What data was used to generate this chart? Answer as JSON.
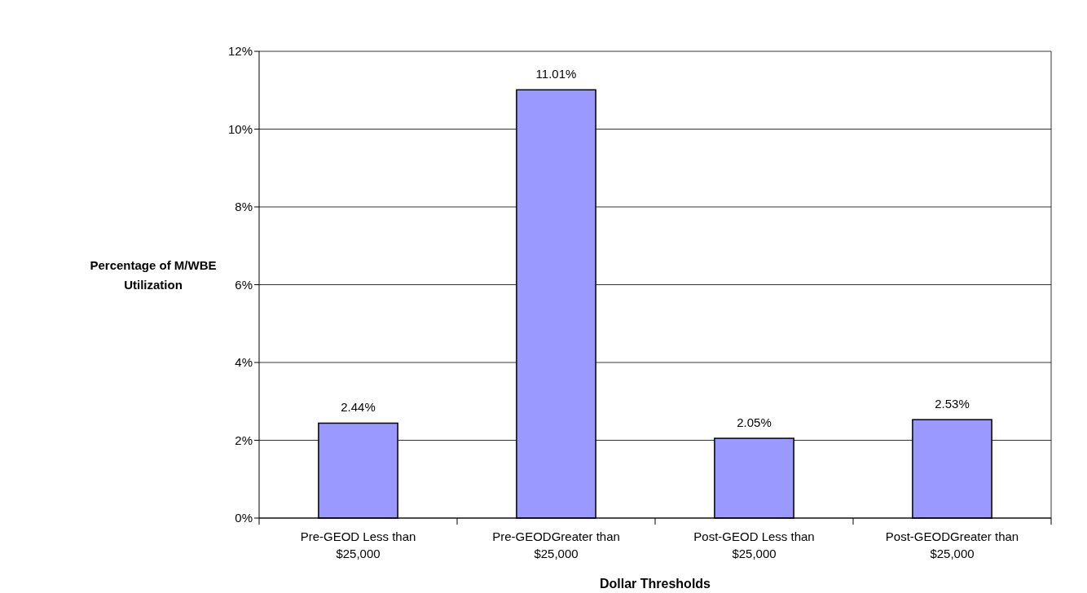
{
  "chart_data": {
    "type": "bar",
    "xlabel": "Dollar Thresholds",
    "ylabel": "Percentage of M/WBE Utilization",
    "categories": [
      "Pre-GEOD Less than $25,000",
      "Pre-GEODGreater than $25,000",
      "Post-GEOD Less than $25,000",
      "Post-GEODGreater than $25,000"
    ],
    "values": [
      2.44,
      11.01,
      2.05,
      2.53
    ],
    "value_labels": [
      "2.44%",
      "11.01%",
      "2.05%",
      "2.53%"
    ],
    "color": "#9999ff",
    "ylim": [
      0,
      12
    ],
    "yticks": [
      {
        "value": 0,
        "label": "0%"
      },
      {
        "value": 2,
        "label": "2%"
      },
      {
        "value": 4,
        "label": "4%"
      },
      {
        "value": 6,
        "label": "6%"
      },
      {
        "value": 8,
        "label": "8%"
      },
      {
        "value": 10,
        "label": "10%"
      },
      {
        "value": 12,
        "label": "12%"
      }
    ],
    "grid": "y"
  }
}
